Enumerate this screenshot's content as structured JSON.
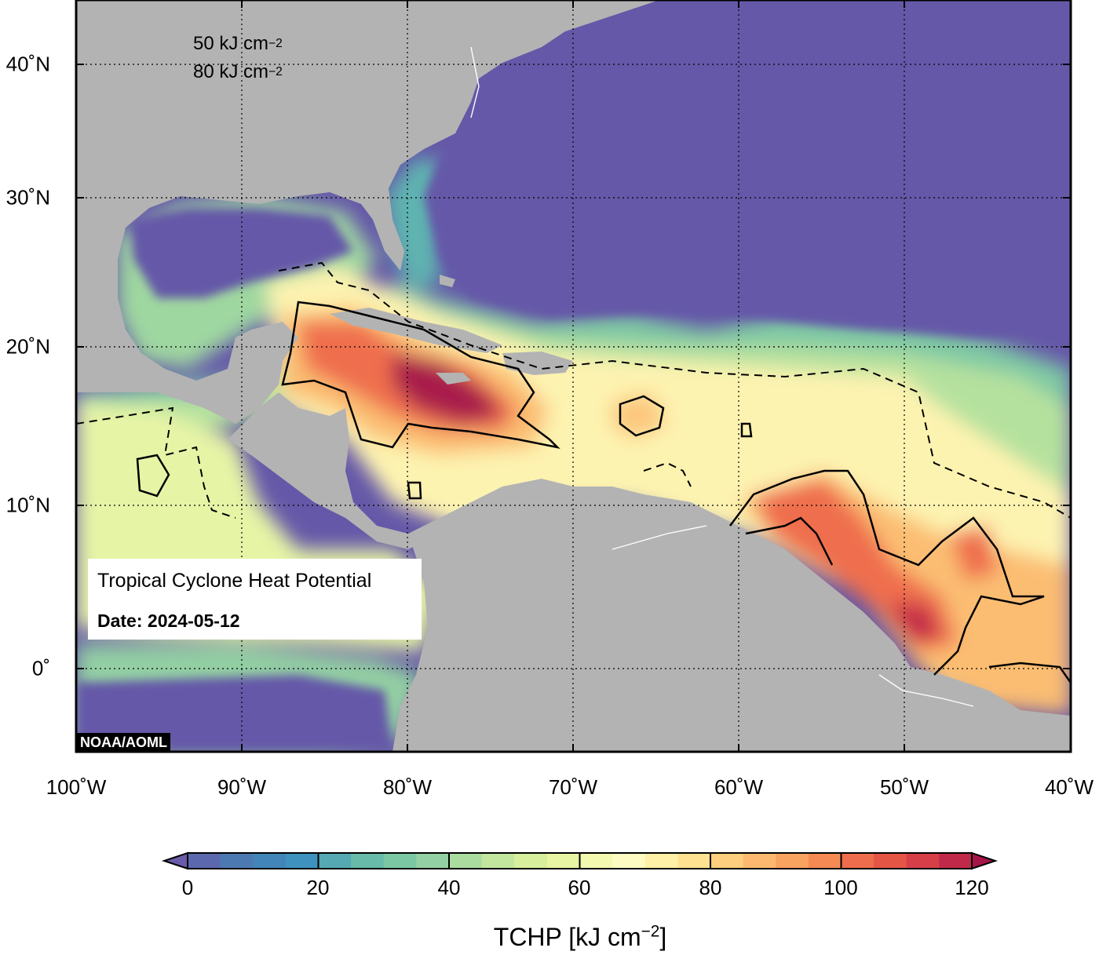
{
  "map": {
    "title": "Tropical Cyclone Heat Potential",
    "date_label": "Date: 2024-05-12",
    "credit": "NOAA/AOML",
    "colors": {
      "ocean_low": "#6558a8",
      "land": "#b3b3b3",
      "grid": "#000000"
    }
  },
  "legend": {
    "items": [
      {
        "style": "dashed",
        "label": "50 kJ cm",
        "sup": "−2"
      },
      {
        "style": "solid",
        "label": "80 kJ cm",
        "sup": "−2"
      }
    ]
  },
  "axes": {
    "lat_labels": [
      "40˚N",
      "30˚N",
      "20˚N",
      "10˚N",
      "0˚"
    ],
    "lon_labels": [
      "100˚W",
      "90˚W",
      "80˚W",
      "70˚W",
      "60˚W",
      "50˚W",
      "40˚W"
    ]
  },
  "colorbar": {
    "title": "TCHP [kJ cm",
    "title_sup": "−2",
    "title_end": "]",
    "tick_labels": [
      "0",
      "20",
      "40",
      "60",
      "80",
      "100",
      "120"
    ],
    "min": 0,
    "max": 120,
    "step": 5,
    "colors": [
      "#6a5aaa",
      "#5c68ad",
      "#4d79b2",
      "#4285b8",
      "#3d93bd",
      "#55a9b3",
      "#68bba8",
      "#7bc7a4",
      "#93d1a4",
      "#aadc9f",
      "#c2e69d",
      "#d7ef9d",
      "#e8f5a2",
      "#f4f9b0",
      "#fdfbc1",
      "#fff0a8",
      "#fee191",
      "#fdce7d",
      "#fcb96f",
      "#f9a361",
      "#f58a55",
      "#ee6d4c",
      "#e45546",
      "#d63f47",
      "#c02949",
      "#a61548"
    ]
  }
}
